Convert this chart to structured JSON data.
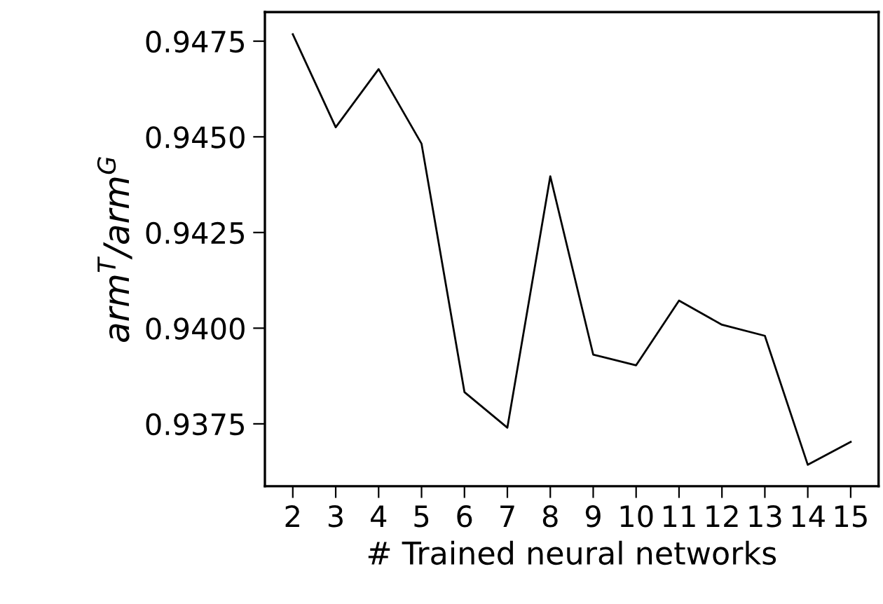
{
  "chart_data": {
    "type": "line",
    "xlabel": "# Trained neural networks",
    "ylabel": "arm$^{T}$/arm$^{G}$",
    "x": [
      2,
      3,
      4,
      5,
      6,
      7,
      8,
      9,
      10,
      11,
      12,
      13,
      14,
      15
    ],
    "series": [
      {
        "color": "#000000",
        "values": [
          0.94768,
          0.94525,
          0.94677,
          0.94482,
          0.93833,
          0.9374,
          0.94397,
          0.93931,
          0.93903,
          0.94072,
          0.94009,
          0.9398,
          0.93643,
          0.93703
        ]
      }
    ],
    "xlim": [
      1.35,
      15.65
    ],
    "xticks": [
      2,
      3,
      4,
      5,
      6,
      7,
      8,
      9,
      10,
      11,
      12,
      13,
      14,
      15
    ],
    "ylim": [
      0.93587,
      0.94826
    ],
    "yticks": [
      0.9375,
      {
        "value": 0.94,
        "label": "0.9400"
      },
      0.9425,
      {
        "value": 0.945,
        "label": "0.9450"
      },
      0.9475
    ],
    "grid": false,
    "legend": false,
    "marker": "none",
    "line_style": "solid"
  }
}
